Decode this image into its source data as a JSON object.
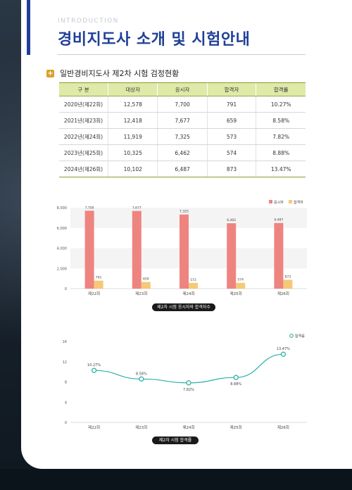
{
  "header": {
    "overline": "INTRODUCTION",
    "title": "경비지도사 소개 및 시험안내"
  },
  "section": {
    "title": "일반경비지도사 제2차 시험 검정현황"
  },
  "table": {
    "columns": [
      "구 분",
      "대상자",
      "응시자",
      "합격자",
      "합격률"
    ],
    "rows": [
      [
        "2020년(제22회)",
        "12,578",
        "7,700",
        "791",
        "10.27%"
      ],
      [
        "2021년(제23회)",
        "12,418",
        "7,677",
        "659",
        "8.58%"
      ],
      [
        "2022년(제24회)",
        "11,919",
        "7,325",
        "573",
        "7.82%"
      ],
      [
        "2023년(제25회)",
        "10,325",
        "6,462",
        "574",
        "8.88%"
      ],
      [
        "2024년(제26회)",
        "10,102",
        "6,487",
        "873",
        "13.47%"
      ]
    ]
  },
  "chart_data": [
    {
      "type": "bar",
      "title": "제2차 시험 응시자와 합격자수",
      "categories": [
        "제22회",
        "제23회",
        "제24회",
        "제25회",
        "제26회"
      ],
      "series": [
        {
          "name": "응시자",
          "values": [
            7700,
            7677,
            7325,
            6462,
            6487
          ],
          "color": "#ee8480"
        },
        {
          "name": "합격자",
          "values": [
            791,
            659,
            573,
            574,
            873
          ],
          "color": "#f6c978"
        }
      ],
      "value_labels": {
        "응시자": [
          "7,700",
          "7,677",
          "7,325",
          "6,462",
          "6,487"
        ],
        "합격자": [
          "791",
          "659",
          "573",
          "574",
          "873"
        ]
      },
      "yticks": [
        "0",
        "2,000",
        "4,000",
        "6,000",
        "8,000"
      ],
      "ylim": [
        0,
        8000
      ],
      "legend": "top-right",
      "grid": "alternating bands"
    },
    {
      "type": "line",
      "title": "제2차 시험 합격률",
      "categories": [
        "제22회",
        "제23회",
        "제24회",
        "제25회",
        "제26회"
      ],
      "series": [
        {
          "name": "합격률",
          "values": [
            10.27,
            8.58,
            7.82,
            8.88,
            13.47
          ],
          "color": "#2ab2a6"
        }
      ],
      "value_labels": [
        "10.27%",
        "8.58%",
        "7.82%",
        "8.88%",
        "13.47%"
      ],
      "yticks": [
        "0",
        "4",
        "8",
        "12",
        "16"
      ],
      "ylim": [
        0,
        16
      ],
      "legend": "top-right",
      "grid": "off"
    }
  ]
}
